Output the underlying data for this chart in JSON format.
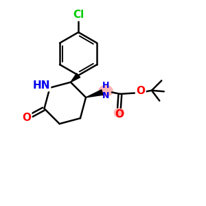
{
  "background_color": "#ffffff",
  "atom_colors": {
    "C": "#000000",
    "N": "#0000ee",
    "O": "#ff0000",
    "Cl": "#00cc00",
    "H": "#000000"
  },
  "highlight_color": "#ffaaaa",
  "bond_lw": 1.8,
  "figsize": [
    3.0,
    3.0
  ],
  "dpi": 100
}
